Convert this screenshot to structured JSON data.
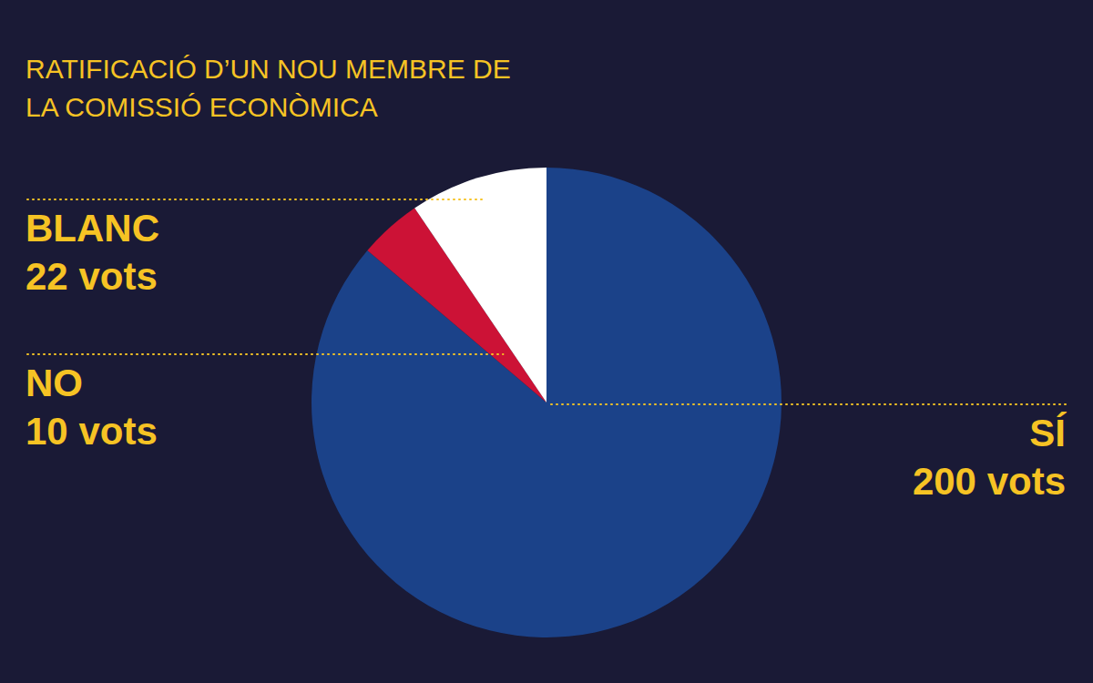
{
  "chart_data": {
    "type": "pie",
    "title": "RATIFICACIÓ D’UN NOU MEMBRE DE LA COMISSIÓ ECONÒMICA",
    "categories": [
      "SÍ",
      "NO",
      "BLANC"
    ],
    "values": [
      200,
      10,
      22
    ],
    "value_labels": [
      "200 vots",
      "10 vots",
      "22 vots"
    ],
    "colors": [
      "#1b4289",
      "#cc1236",
      "#ffffff"
    ],
    "data_labels": true
  }
}
